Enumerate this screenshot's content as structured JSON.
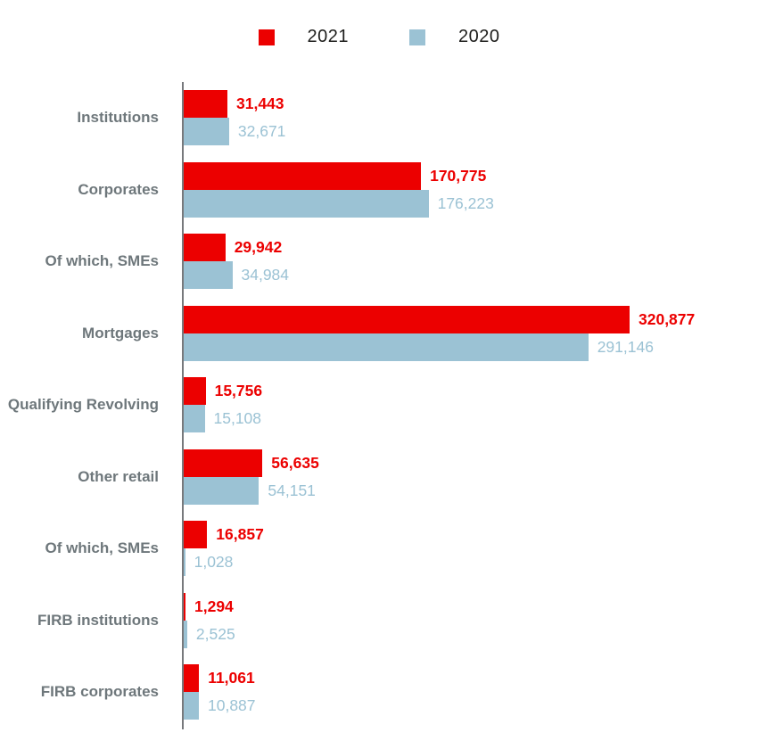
{
  "colors": {
    "red": "#ec0000",
    "blue": "#9bc2d4",
    "label_gray": "#6e777b",
    "axis_gray": "#77797c",
    "legend_text": "#1d1d1b"
  },
  "legend": {
    "items": [
      {
        "label": "2021",
        "color_key": "red"
      },
      {
        "label": "2020",
        "color_key": "blue"
      }
    ]
  },
  "chart_data": {
    "type": "bar",
    "orientation": "horizontal",
    "title": "",
    "xlabel": "",
    "ylabel": "",
    "grid": false,
    "legend_position": "top-center",
    "xmax": 320877,
    "categories": [
      "Institutions",
      "Corporates",
      "Of which, SMEs",
      "Mortgages",
      "Qualifying Revolving",
      "Other retail",
      "Of which, SMEs",
      "FIRB institutions",
      "FIRB corporates"
    ],
    "series": [
      {
        "name": "2021",
        "color": "#ec0000",
        "values": [
          31443,
          170775,
          29942,
          320877,
          15756,
          56635,
          16857,
          1294,
          11061
        ]
      },
      {
        "name": "2020",
        "color": "#9bc2d4",
        "values": [
          32671,
          176223,
          34984,
          291146,
          15108,
          54151,
          1028,
          2525,
          10887
        ]
      }
    ]
  }
}
